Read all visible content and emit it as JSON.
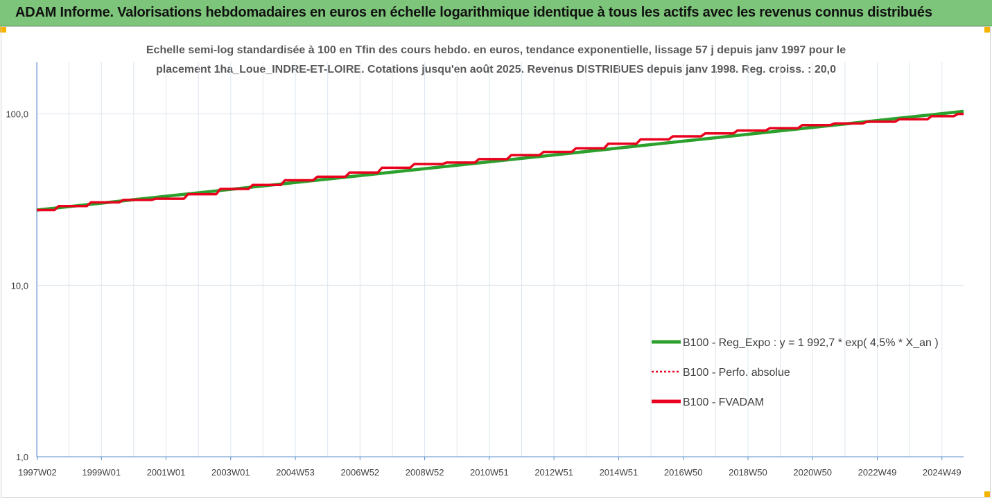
{
  "header": {
    "title": "ADAM Informe. Valorisations hebdomadaires en euros en échelle logarithmique identique à tous les actifs avec les revenus connus distribués"
  },
  "colors": {
    "header_bg": "#7dc57a",
    "regression": "#2ca02c",
    "fvadam": "#e8001c",
    "perf": "#e8001c",
    "grid": "#dde6ee",
    "axis": "#5b8fc9"
  },
  "chart_data": {
    "type": "line",
    "title": "Echelle semi-log standardisée à 100 en Tfin des cours hebdo. en euros, tendance exponentielle, lissage 57 j depuis janv 1997 pour le",
    "subtitle": "placement 1ha_Loue_INDRE-ET-LOIRE. Cotations jusqu'en août 2025. Revenus DISTRIBUES depuis janv 1998. Reg. croiss. : 20,0",
    "yscale": "log",
    "ylim": [
      1,
      200
    ],
    "yticks": [
      "1,0",
      "10,0",
      "100,0"
    ],
    "ytick_values": [
      1,
      10,
      100
    ],
    "xlim": [
      1997.0,
      2025.67
    ],
    "xticks": [
      {
        "label": "1997W02",
        "x": 1997.02
      },
      {
        "label": "1999W01",
        "x": 1999.0
      },
      {
        "label": "2001W01",
        "x": 2001.0
      },
      {
        "label": "2003W01",
        "x": 2003.0
      },
      {
        "label": "2004W53",
        "x": 2005.0
      },
      {
        "label": "2006W52",
        "x": 2007.0
      },
      {
        "label": "2008W52",
        "x": 2009.0
      },
      {
        "label": "2010W51",
        "x": 2011.0
      },
      {
        "label": "2012W51",
        "x": 2013.0
      },
      {
        "label": "2014W51",
        "x": 2015.0
      },
      {
        "label": "2016W50",
        "x": 2017.0
      },
      {
        "label": "2018W50",
        "x": 2019.0
      },
      {
        "label": "2020W50",
        "x": 2021.0
      },
      {
        "label": "2022W49",
        "x": 2023.0
      },
      {
        "label": "2024W49",
        "x": 2025.0
      }
    ],
    "grid": true,
    "legend_position": "bottom-right",
    "series": [
      {
        "name": "B100 - Reg_Expo : y = 1 992,7 * exp( 4,5% *  X_an )",
        "style": "solid-thick",
        "color": "#2ca02c",
        "x": [
          1997.0,
          2025.67
        ],
        "y": [
          27.5,
          103.5
        ]
      },
      {
        "name": "B100 - Perfo. absolue",
        "style": "dotted",
        "color": "#e8001c",
        "x": [
          1997.0,
          1998.0,
          1999.0,
          2000.0,
          2001.0,
          2002.0,
          2003.0,
          2004.0,
          2005.0,
          2006.0,
          2007.0,
          2008.0,
          2009.0,
          2010.0,
          2011.0,
          2012.0,
          2013.0,
          2014.0,
          2015.0,
          2016.0,
          2017.0,
          2018.0,
          2019.0,
          2020.0,
          2021.0,
          2022.0,
          2023.0,
          2024.0,
          2025.0,
          2025.67
        ],
        "y": [
          27.5,
          29.0,
          30.5,
          31.5,
          32.0,
          34.0,
          36.5,
          38.5,
          41.0,
          43.0,
          45.5,
          48.5,
          51.0,
          52.0,
          54.5,
          57.5,
          60.0,
          63.0,
          67.0,
          71.0,
          74.0,
          77.0,
          80.0,
          82.5,
          86.0,
          88.0,
          90.0,
          93.0,
          97.0,
          100.0
        ]
      },
      {
        "name": "B100 - FVADAM",
        "style": "solid-thick",
        "color": "#e8001c",
        "x": [
          1997.0,
          1998.0,
          1999.0,
          2000.0,
          2001.0,
          2002.0,
          2003.0,
          2004.0,
          2005.0,
          2006.0,
          2007.0,
          2008.0,
          2009.0,
          2010.0,
          2011.0,
          2012.0,
          2013.0,
          2014.0,
          2015.0,
          2016.0,
          2017.0,
          2018.0,
          2019.0,
          2020.0,
          2021.0,
          2022.0,
          2023.0,
          2024.0,
          2025.0,
          2025.67
        ],
        "y": [
          27.5,
          29.0,
          30.5,
          31.5,
          32.0,
          34.0,
          36.5,
          38.5,
          41.0,
          43.0,
          45.5,
          48.5,
          51.0,
          52.0,
          54.5,
          57.5,
          60.0,
          63.0,
          67.0,
          71.0,
          74.0,
          77.0,
          80.0,
          82.5,
          86.0,
          88.0,
          90.0,
          93.0,
          97.0,
          100.0
        ]
      }
    ]
  }
}
